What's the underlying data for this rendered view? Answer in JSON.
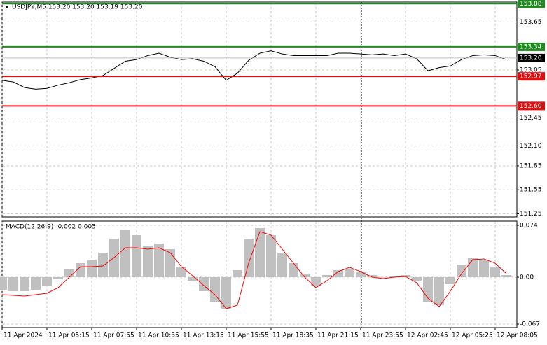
{
  "chart_data": [
    {
      "type": "line",
      "title": "USDJPY,M5  153.20 153.20 153.19 153.20",
      "categories": [
        "11 Apr 2024",
        null,
        null,
        null,
        "11 Apr 05:15",
        null,
        null,
        null,
        "11 Apr 07:55",
        null,
        null,
        null,
        "11 Apr 10:35",
        null,
        null,
        null,
        "11 Apr 13:15",
        null,
        null,
        null,
        "11 Apr 15:55",
        null,
        null,
        null,
        "11 Apr 18:35",
        null,
        null,
        null,
        "11 Apr 21:15",
        null,
        null,
        null,
        "11 Apr 23:55",
        null,
        null,
        null,
        "12 Apr 02:45",
        null,
        null,
        null,
        "12 Apr 05:25",
        null,
        null,
        null,
        "12 Apr 08:05",
        null
      ],
      "series": [
        {
          "color": "#000000",
          "values": [
            152.92,
            152.9,
            152.83,
            152.81,
            152.82,
            152.86,
            152.89,
            152.93,
            152.95,
            152.98,
            153.07,
            153.16,
            153.18,
            153.23,
            153.26,
            153.21,
            153.18,
            153.19,
            153.16,
            153.09,
            152.92,
            153.01,
            153.17,
            153.26,
            153.29,
            153.25,
            153.23,
            153.23,
            153.23,
            153.23,
            153.26,
            153.26,
            153.25,
            153.24,
            153.25,
            153.23,
            153.25,
            153.19,
            153.04,
            153.08,
            153.1,
            153.18,
            153.23,
            153.24,
            153.23,
            153.18
          ]
        }
      ],
      "ylim": [
        151.21,
        153.9
      ],
      "yticks": [
        153.65,
        153.05,
        152.45,
        {
          "value": 152.1,
          "label": "152.10"
        },
        151.85,
        151.55,
        151.25
      ],
      "levels": [
        {
          "value": 153.88,
          "color": "#1e8c1e"
        },
        {
          "value": 153.34,
          "color": "#1e8c1e"
        },
        {
          "value": 152.97,
          "color": "#e01010"
        },
        {
          "value": 152.6,
          "label": "152.60",
          "color": "#e01010"
        }
      ],
      "current": {
        "value": 153.2,
        "label": "153.20",
        "color": "#000000"
      },
      "grid": true
    },
    {
      "type": "macd",
      "title": "MACD(12,26,9) -0.002 0.005",
      "series": [
        {
          "color": "#c0c0c0",
          "values": [
            -0.018,
            -0.02,
            -0.02,
            -0.018,
            -0.012,
            -0.003,
            0.012,
            0.02,
            0.025,
            0.035,
            0.055,
            0.068,
            0.06,
            0.045,
            0.048,
            0.04,
            0.015,
            -0.005,
            -0.02,
            -0.035,
            -0.045,
            0.01,
            0.055,
            0.07,
            0.06,
            0.035,
            0.02,
            0.005,
            -0.012,
            0.003,
            0.01,
            0.012,
            0.008,
            0.003,
            0,
            0.001,
            0.003,
            -0.005,
            -0.035,
            -0.04,
            -0.01,
            0.018,
            0.028,
            0.024,
            0.015,
            0.003
          ]
        },
        {
          "color": "#ff0000",
          "values": [
            -0.025,
            -0.026,
            -0.027,
            -0.025,
            -0.023,
            -0.015,
            0,
            0.015,
            0.015,
            0.016,
            0.028,
            0.042,
            0.042,
            0.04,
            0.042,
            0.035,
            0.015,
            0.002,
            -0.012,
            -0.025,
            -0.045,
            -0.04,
            0.02,
            0.065,
            0.06,
            0.04,
            0.02,
            0,
            -0.015,
            -0.005,
            0.008,
            0.014,
            0.008,
            0,
            -0.002,
            0,
            0.001,
            -0.008,
            -0.03,
            -0.042,
            -0.02,
            0.005,
            0.025,
            0.026,
            0.02,
            0.005
          ]
        }
      ],
      "ylim": [
        -0.072,
        0.08
      ],
      "yticks": [
        0.074,
        {
          "value": 0,
          "label": "0.00"
        },
        -0.067
      ],
      "grid": true
    }
  ]
}
